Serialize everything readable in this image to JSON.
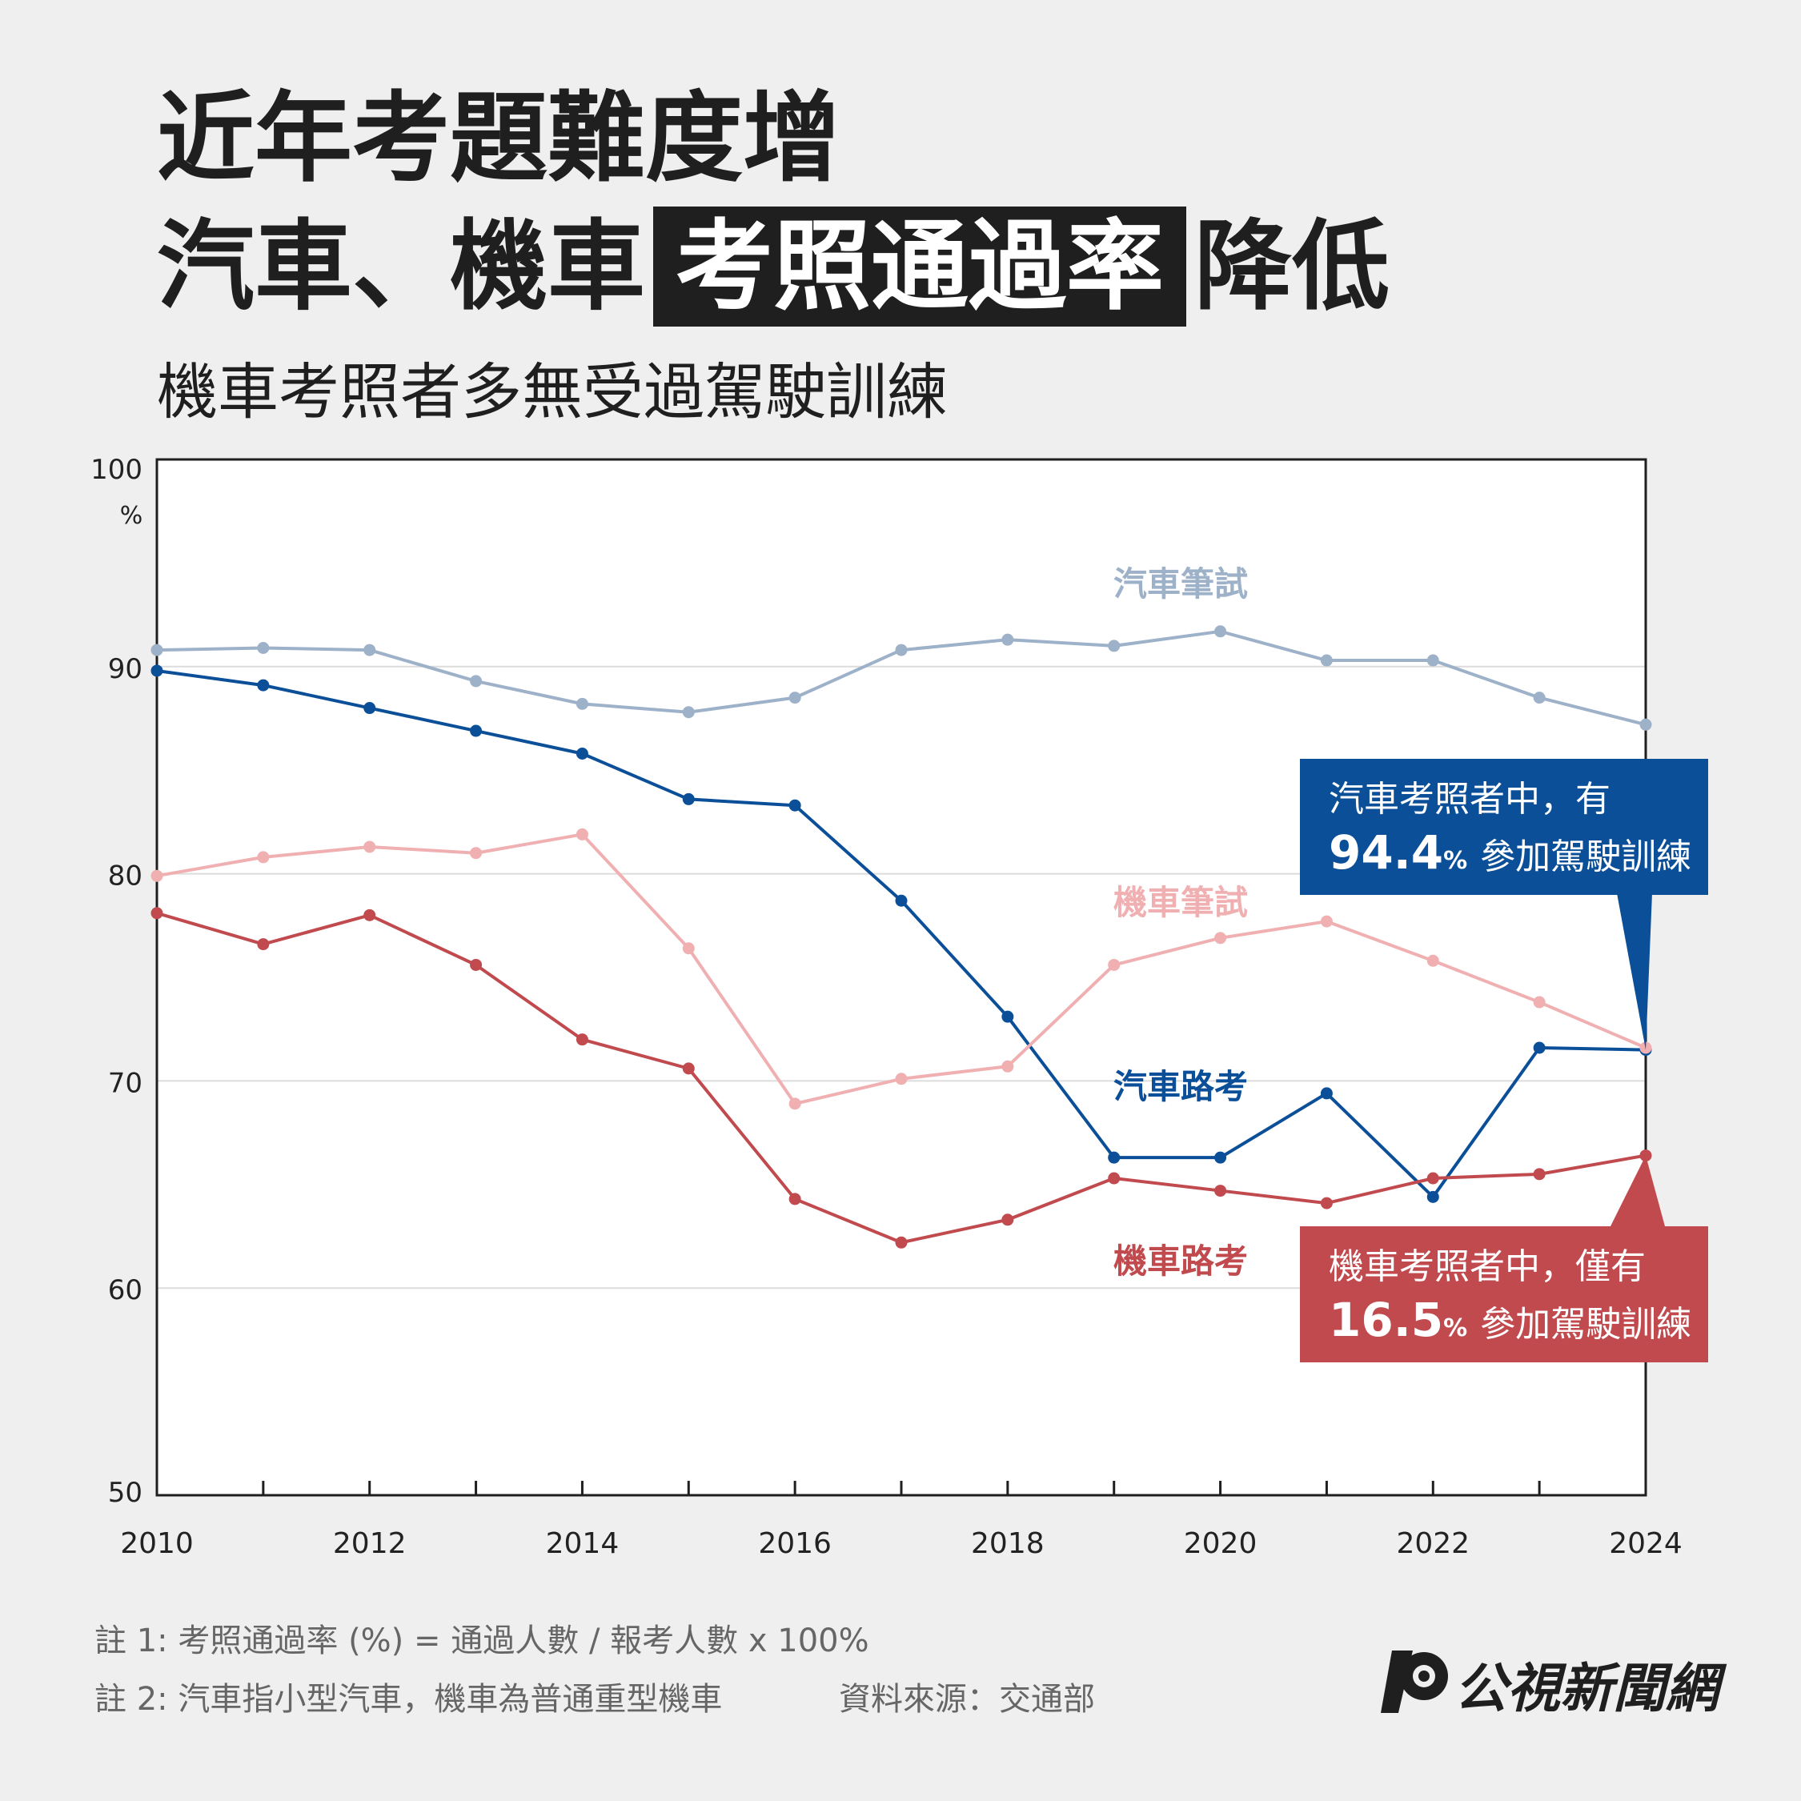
{
  "header": {
    "title_line1": "近年考題難度增",
    "title_line2_prefix": "汽車、機車",
    "title_line2_highlight": "考照通過率",
    "title_line2_suffix": "降低",
    "subtitle": "機車考照者多無受過駕駛訓練"
  },
  "chart_data": {
    "type": "line",
    "x": [
      2010,
      2011,
      2012,
      2013,
      2014,
      2015,
      2016,
      2017,
      2018,
      2019,
      2020,
      2021,
      2022,
      2023,
      2024
    ],
    "x_tick_labels": [
      "2010",
      "2012",
      "2014",
      "2016",
      "2018",
      "2020",
      "2022",
      "2024"
    ],
    "y_tick_labels": [
      "100",
      "90",
      "80",
      "70",
      "60",
      "50"
    ],
    "y_unit": "%",
    "ylim": [
      50,
      100
    ],
    "xlim": [
      2010,
      2024
    ],
    "grid": "horizontal",
    "series": [
      {
        "name": "汽車筆試",
        "color": "#9db1c9",
        "values": [
          90.8,
          90.9,
          90.8,
          89.3,
          88.2,
          87.8,
          88.5,
          90.8,
          91.3,
          91.0,
          91.7,
          90.3,
          90.3,
          88.5,
          87.2
        ]
      },
      {
        "name": "汽車路考",
        "color": "#0b4f99",
        "values": [
          89.8,
          89.1,
          88.0,
          86.9,
          85.8,
          83.6,
          83.3,
          78.7,
          73.1,
          66.3,
          66.3,
          69.4,
          64.4,
          71.6,
          71.5
        ]
      },
      {
        "name": "機車筆試",
        "color": "#f0b0b2",
        "values": [
          79.9,
          80.8,
          81.3,
          81.0,
          81.9,
          76.4,
          68.9,
          70.1,
          70.7,
          75.6,
          76.9,
          77.7,
          75.8,
          73.8,
          71.6
        ]
      },
      {
        "name": "機車路考",
        "color": "#c04a4e",
        "values": [
          78.1,
          76.6,
          78.0,
          75.6,
          72.0,
          70.6,
          64.3,
          62.2,
          63.3,
          65.3,
          64.7,
          64.1,
          65.3,
          65.5,
          66.4
        ]
      }
    ]
  },
  "callouts": {
    "car": {
      "line1": "汽車考照者中，有",
      "value": "94.4",
      "unit": "%",
      "rest": "參加駕駛訓練",
      "color": "#0b4f99"
    },
    "moto": {
      "line1": "機車考照者中，僅有",
      "value": "16.5",
      "unit": "%",
      "rest": "參加駕駛訓練",
      "color": "#c04a4e"
    }
  },
  "footer": {
    "note1": "註 1: 考照通過率 (%) = 通過人數 / 報考人數 x 100%",
    "note2": "註 2: 汽車指小型汽車，機車為普通重型機車",
    "source": "資料來源：交通部",
    "logo_text": "公視新聞網"
  }
}
